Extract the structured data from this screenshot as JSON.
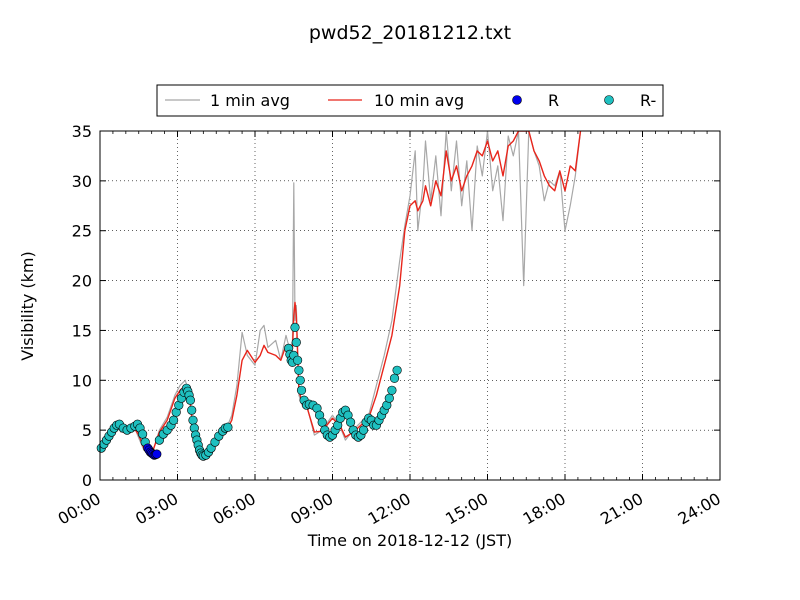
{
  "chart_data": {
    "type": "line",
    "title": "pwd52_20181212.txt",
    "xlabel": "Time on 2018-12-12 (JST)",
    "ylabel": "Visibility (km)",
    "xlim": [
      0,
      24
    ],
    "ylim": [
      0,
      35
    ],
    "xtick_values": [
      0,
      3,
      6,
      9,
      12,
      15,
      18,
      21,
      24
    ],
    "xtick_labels": [
      "00:00",
      "03:00",
      "06:00",
      "09:00",
      "12:00",
      "15:00",
      "18:00",
      "21:00",
      "24:00"
    ],
    "ytick_values": [
      0,
      5,
      10,
      15,
      20,
      25,
      30,
      35
    ],
    "ytick_labels": [
      "0",
      "5",
      "10",
      "15",
      "20",
      "25",
      "30",
      "35"
    ],
    "grid": true,
    "legend_position": "top-center",
    "legend": [
      {
        "label": "1 min avg",
        "kind": "line",
        "color": "#a8a8a8"
      },
      {
        "label": "10 min avg",
        "kind": "line",
        "color": "#e8251b"
      },
      {
        "label": "R",
        "kind": "marker",
        "color": "#0000ee"
      },
      {
        "label": "R-",
        "kind": "marker",
        "color": "#1fc0c0"
      }
    ],
    "series": [
      {
        "name": "1 min avg",
        "color": "#a8a8a8",
        "x": [
          0.0,
          0.3,
          0.6,
          0.8,
          1.0,
          1.3,
          1.5,
          1.7,
          2.0,
          2.3,
          2.6,
          2.9,
          3.1,
          3.3,
          3.45,
          3.6,
          3.8,
          4.0,
          4.3,
          4.6,
          4.9,
          5.1,
          5.3,
          5.5,
          5.7,
          6.0,
          6.2,
          6.35,
          6.5,
          6.8,
          7.0,
          7.2,
          7.35,
          7.45,
          7.5,
          7.55,
          7.6,
          7.7,
          7.85,
          8.0,
          8.3,
          8.6,
          9.0,
          9.3,
          9.5,
          9.8,
          10.1,
          10.4,
          10.7,
          11.0,
          11.3,
          11.6,
          11.8,
          12.0,
          12.2,
          12.3,
          12.5,
          12.6,
          12.8,
          13.0,
          13.2,
          13.4,
          13.6,
          13.8,
          14.0,
          14.2,
          14.4,
          14.6,
          14.8,
          15.0,
          15.2,
          15.4,
          15.6,
          15.8,
          16.0,
          16.2,
          16.4,
          16.6,
          16.8,
          17.0,
          17.2,
          17.4,
          17.6,
          17.8,
          18.0,
          18.2,
          18.4,
          18.6
        ],
        "values": [
          3.0,
          4.5,
          5.8,
          4.8,
          5.1,
          5.5,
          4.2,
          3.0,
          2.5,
          5.0,
          6.3,
          8.5,
          9.5,
          10.0,
          8.6,
          5.0,
          2.5,
          2.2,
          3.5,
          4.5,
          5.2,
          6.5,
          9.5,
          14.8,
          12.5,
          11.5,
          15.0,
          15.5,
          13.3,
          14.0,
          12.0,
          14.5,
          13.0,
          14.0,
          29.8,
          16.0,
          17.5,
          8.5,
          7.3,
          7.5,
          4.5,
          5.0,
          6.5,
          5.3,
          4.0,
          5.0,
          5.8,
          6.5,
          9.5,
          12.5,
          16.0,
          22.0,
          25.5,
          28.5,
          33.0,
          25.0,
          29.5,
          34.0,
          28.0,
          32.5,
          26.5,
          35.0,
          29.0,
          34.0,
          27.5,
          32.0,
          25.0,
          33.5,
          30.5,
          35.0,
          29.0,
          31.5,
          26.0,
          34.5,
          32.5,
          35.0,
          19.5,
          35.0,
          33.0,
          31.5,
          28.0,
          30.0,
          29.5,
          31.0,
          25.0,
          27.5,
          30.5,
          35.0
        ]
      },
      {
        "name": "10 min avg",
        "color": "#e8251b",
        "x": [
          0.0,
          0.3,
          0.6,
          0.8,
          1.0,
          1.3,
          1.5,
          1.7,
          2.0,
          2.3,
          2.6,
          2.9,
          3.1,
          3.3,
          3.45,
          3.6,
          3.8,
          4.0,
          4.3,
          4.6,
          4.9,
          5.1,
          5.3,
          5.5,
          5.7,
          6.0,
          6.2,
          6.35,
          6.5,
          6.8,
          7.0,
          7.2,
          7.35,
          7.45,
          7.5,
          7.55,
          7.6,
          7.7,
          7.85,
          8.0,
          8.3,
          8.6,
          9.0,
          9.3,
          9.5,
          9.8,
          10.1,
          10.4,
          10.7,
          11.0,
          11.3,
          11.6,
          11.8,
          12.0,
          12.2,
          12.3,
          12.5,
          12.6,
          12.8,
          13.0,
          13.2,
          13.4,
          13.6,
          13.8,
          14.0,
          14.2,
          14.4,
          14.6,
          14.8,
          15.0,
          15.2,
          15.4,
          15.6,
          15.8,
          16.0,
          16.2,
          16.4,
          16.6,
          16.8,
          17.0,
          17.2,
          17.4,
          17.6,
          17.8,
          18.0,
          18.2,
          18.4,
          18.6
        ],
        "values": [
          3.0,
          4.3,
          5.5,
          5.0,
          5.0,
          5.3,
          4.5,
          3.2,
          2.6,
          4.8,
          6.0,
          8.2,
          9.0,
          9.5,
          8.8,
          5.2,
          2.7,
          2.4,
          3.3,
          4.3,
          5.0,
          6.0,
          8.5,
          12.0,
          13.0,
          11.8,
          12.5,
          13.5,
          12.8,
          12.5,
          12.0,
          13.5,
          12.8,
          13.2,
          16.5,
          17.8,
          16.5,
          9.0,
          7.5,
          7.4,
          4.8,
          4.9,
          6.2,
          5.4,
          4.3,
          4.8,
          5.5,
          6.2,
          8.5,
          11.5,
          14.5,
          19.5,
          25.0,
          27.5,
          28.0,
          27.0,
          28.0,
          29.5,
          27.5,
          30.0,
          28.5,
          33.0,
          30.0,
          31.5,
          29.0,
          30.5,
          31.5,
          33.0,
          32.5,
          34.0,
          32.0,
          33.0,
          30.5,
          33.5,
          34.0,
          35.0,
          35.0,
          35.0,
          33.0,
          32.0,
          30.5,
          29.5,
          29.0,
          31.0,
          29.0,
          31.5,
          31.0,
          35.0
        ]
      },
      {
        "name": "R",
        "color": "#0000ee",
        "type": "scatter",
        "x": [
          1.85,
          1.9,
          1.95,
          2.0,
          2.05,
          2.1,
          2.15,
          2.2
        ],
        "values": [
          3.2,
          3.0,
          2.8,
          2.7,
          2.6,
          2.5,
          2.55,
          2.6
        ]
      },
      {
        "name": "R-",
        "color": "#1fc0c0",
        "type": "scatter",
        "x": [
          0.05,
          0.15,
          0.25,
          0.35,
          0.45,
          0.55,
          0.65,
          0.75,
          0.9,
          1.05,
          1.2,
          1.35,
          1.45,
          1.55,
          1.65,
          1.75,
          2.3,
          2.45,
          2.6,
          2.75,
          2.85,
          2.95,
          3.05,
          3.15,
          3.25,
          3.35,
          3.4,
          3.45,
          3.5,
          3.55,
          3.6,
          3.65,
          3.7,
          3.75,
          3.8,
          3.85,
          3.9,
          3.95,
          4.0,
          4.1,
          4.2,
          4.3,
          4.45,
          4.6,
          4.75,
          4.85,
          4.95,
          7.3,
          7.35,
          7.4,
          7.45,
          7.5,
          7.55,
          7.6,
          7.65,
          7.7,
          7.75,
          7.8,
          7.9,
          8.0,
          8.1,
          8.25,
          8.4,
          8.5,
          8.6,
          8.7,
          8.8,
          8.9,
          9.0,
          9.1,
          9.2,
          9.3,
          9.4,
          9.5,
          9.6,
          9.7,
          9.8,
          9.9,
          10.0,
          10.1,
          10.2,
          10.3,
          10.4,
          10.5,
          10.6,
          10.7,
          10.8,
          10.9,
          11.0,
          11.1,
          11.2,
          11.3,
          11.4,
          11.5
        ],
        "values": [
          3.2,
          3.6,
          4.0,
          4.4,
          4.8,
          5.2,
          5.5,
          5.6,
          5.2,
          5.0,
          5.2,
          5.4,
          5.6,
          5.2,
          4.6,
          3.8,
          4.0,
          4.6,
          5.0,
          5.5,
          6.0,
          6.8,
          7.5,
          8.2,
          8.8,
          9.2,
          8.9,
          8.5,
          8.0,
          7.0,
          6.0,
          5.2,
          4.5,
          4.0,
          3.5,
          3.0,
          2.7,
          2.5,
          2.4,
          2.5,
          2.8,
          3.2,
          3.8,
          4.4,
          4.9,
          5.2,
          5.3,
          13.2,
          12.6,
          12.0,
          11.8,
          12.5,
          15.3,
          13.8,
          12.0,
          11.0,
          10.0,
          9.0,
          8.0,
          7.5,
          7.6,
          7.5,
          7.2,
          6.5,
          5.8,
          5.0,
          4.5,
          4.3,
          4.5,
          5.0,
          5.5,
          6.2,
          6.8,
          7.0,
          6.5,
          5.8,
          5.0,
          4.5,
          4.3,
          4.5,
          5.0,
          5.8,
          6.2,
          6.0,
          5.5,
          5.5,
          6.0,
          6.5,
          7.0,
          7.5,
          8.2,
          9.0,
          10.2,
          11.0
        ]
      }
    ]
  }
}
